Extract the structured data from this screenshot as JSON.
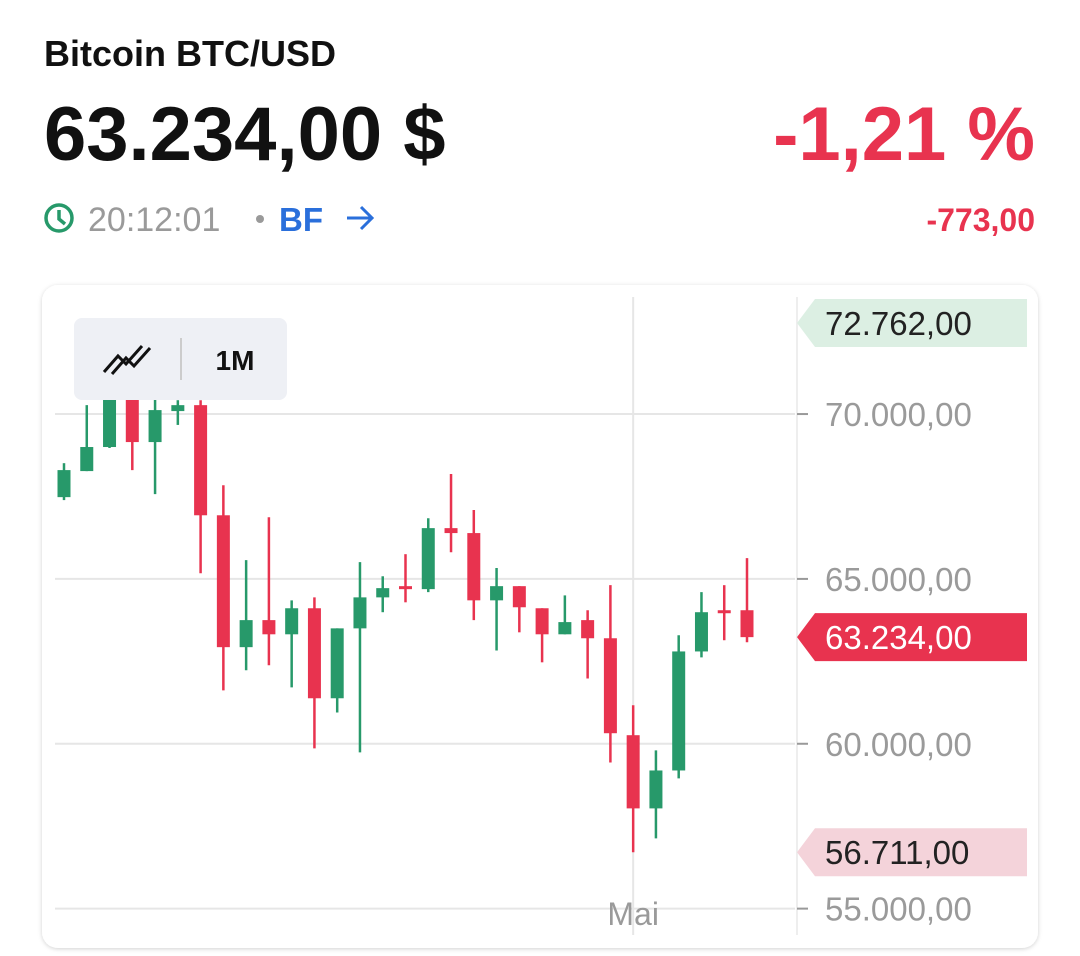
{
  "header": {
    "title": "Bitcoin BTC/USD",
    "price": "63.234,00 $",
    "change_percent": "-1,21 %",
    "time": "20:12:01",
    "source": "BF",
    "change": "-773,00"
  },
  "toolbar": {
    "interval": "1M"
  },
  "chart_data": {
    "type": "candlestick",
    "categories": [
      null,
      null,
      null,
      null,
      null,
      null,
      null,
      null,
      null,
      null,
      null,
      null,
      null,
      null,
      null,
      null,
      null,
      null,
      null,
      null,
      null,
      null,
      null,
      null,
      null,
      "Mai",
      null,
      null,
      null,
      null,
      null
    ],
    "open": [
      67480,
      68270,
      69000,
      70580,
      69150,
      70090,
      70270,
      66930,
      62930,
      63750,
      63320,
      64110,
      61380,
      63500,
      64440,
      64780,
      64690,
      66540,
      66390,
      64350,
      64780,
      64110,
      63320,
      63750,
      63200,
      60260,
      58040,
      59190,
      62800,
      64050,
      64050
    ],
    "high": [
      68510,
      70270,
      72762,
      70700,
      70500,
      70420,
      70420,
      67840,
      65570,
      66870,
      64350,
      64440,
      63500,
      65510,
      65080,
      65750,
      66840,
      68180,
      67090,
      65330,
      64780,
      64110,
      64500,
      64050,
      64810,
      61170,
      59800,
      63290,
      64600,
      64810,
      65630
    ],
    "low": [
      67390,
      68270,
      68970,
      68300,
      67570,
      69670,
      65170,
      61620,
      62230,
      62380,
      61710,
      59860,
      60950,
      59740,
      63990,
      64290,
      64600,
      65810,
      63750,
      62830,
      63380,
      62470,
      63320,
      61980,
      59430,
      56711,
      57130,
      58950,
      62620,
      63140,
      63080
    ],
    "close": [
      68300,
      69000,
      70580,
      69150,
      70120,
      70270,
      66930,
      62930,
      63750,
      63320,
      64110,
      61380,
      63500,
      64440,
      64720,
      64690,
      66540,
      66390,
      64350,
      64780,
      64140,
      63320,
      63690,
      63200,
      60320,
      58040,
      59190,
      62800,
      63990,
      63990,
      63234
    ],
    "up_color": "#27996a",
    "down_color": "#e8334f",
    "ylim": [
      54200,
      73550
    ],
    "yticks": [
      {
        "value": 55000,
        "label": "55.000,00"
      },
      {
        "value": 60000,
        "label": "60.000,00"
      },
      {
        "value": 65000,
        "label": "65.000,00"
      },
      {
        "value": 70000,
        "label": "70.000,00"
      }
    ],
    "grid": true,
    "markers": [
      {
        "value": 72762,
        "label": "72.762,00",
        "color": "#dcefe3"
      },
      {
        "value": 63234,
        "label": "63.234,00",
        "color": "#e8334f"
      },
      {
        "value": 56711,
        "label": "56.711,00",
        "color": "#f4d3da"
      }
    ]
  }
}
